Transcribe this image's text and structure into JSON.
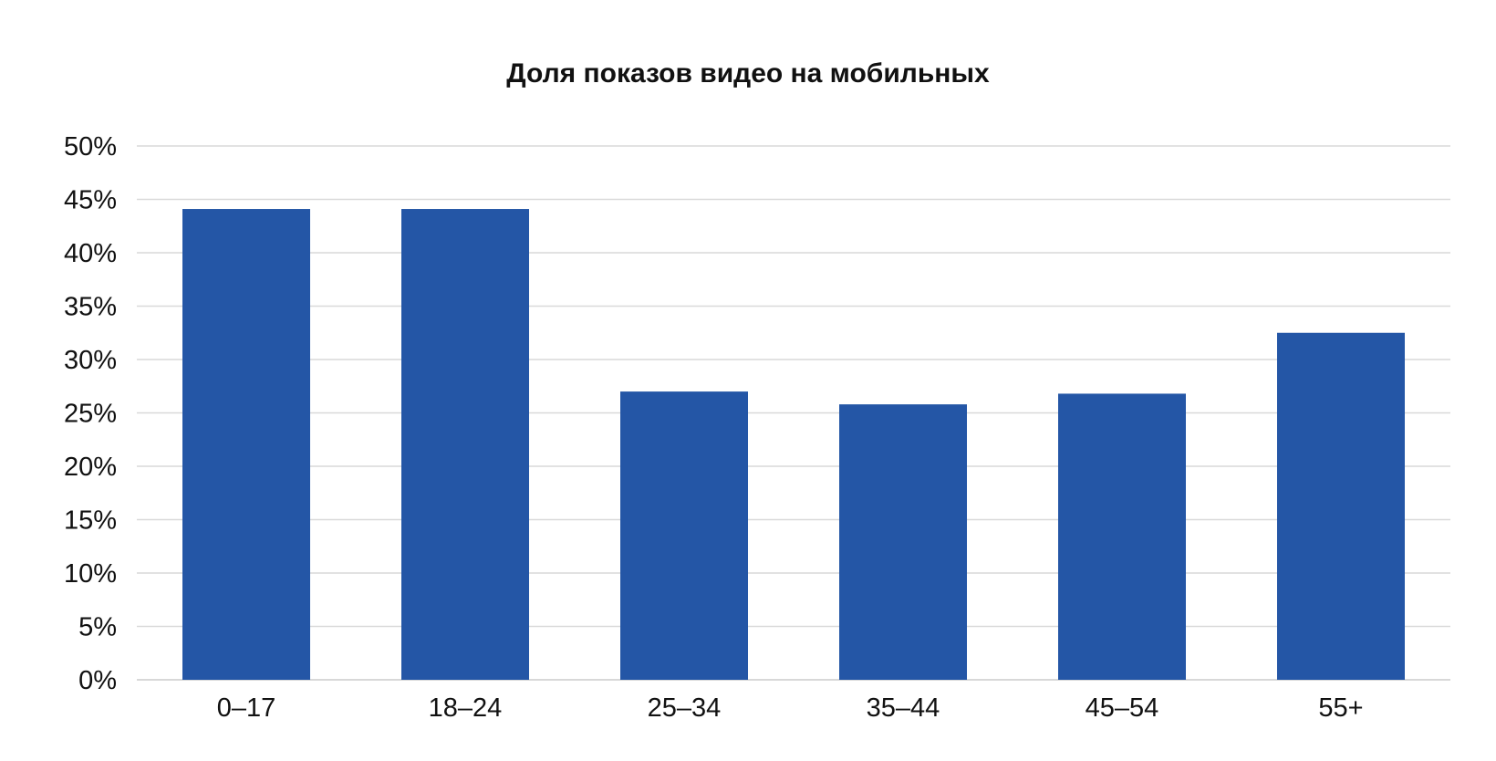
{
  "chart_data": {
    "type": "bar",
    "title": "Доля показов видео на мобильных",
    "xlabel": "",
    "ylabel": "",
    "categories": [
      "0–17",
      "18–24",
      "25–34",
      "35–44",
      "45–54",
      "55+"
    ],
    "values": [
      44.1,
      44.1,
      27.0,
      25.8,
      26.8,
      32.5
    ],
    "ylim": [
      0,
      50
    ],
    "y_ticks": [
      "0%",
      "5%",
      "10%",
      "15%",
      "20%",
      "25%",
      "30%",
      "35%",
      "40%",
      "45%",
      "50%"
    ],
    "y_tick_values": [
      0,
      5,
      10,
      15,
      20,
      25,
      30,
      35,
      40,
      45,
      50
    ],
    "grid": true,
    "legend": "none",
    "colors": {
      "bar": "#2456a6",
      "grid": "#d9d9d9",
      "text": "#111111"
    }
  }
}
